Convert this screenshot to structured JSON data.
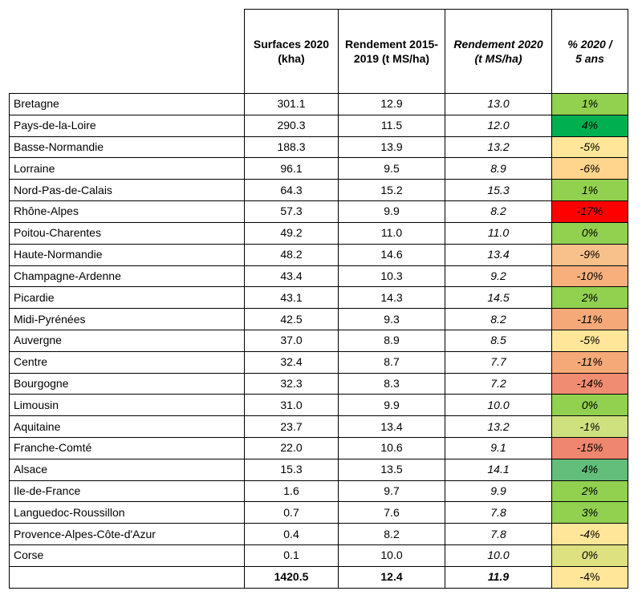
{
  "chart_data": {
    "type": "table",
    "columns": [
      "",
      "Surfaces 2020 (kha)",
      "Rendement 2015-2019 (t MS/ha)",
      "Rendement 2020 (t MS/ha)",
      "% 2020 / 5 ans"
    ],
    "rows": [
      {
        "region": "Bretagne",
        "surface": "301.1",
        "rend_5ans": "12.9",
        "rend_2020": "13.0",
        "pct": "1%",
        "color": "#92d050"
      },
      {
        "region": "Pays-de-la-Loire",
        "surface": "290.3",
        "rend_5ans": "11.5",
        "rend_2020": "12.0",
        "pct": "4%",
        "color": "#00b050"
      },
      {
        "region": "Basse-Normandie",
        "surface": "188.3",
        "rend_5ans": "13.9",
        "rend_2020": "13.2",
        "pct": "-5%",
        "color": "#ffe699"
      },
      {
        "region": "Lorraine",
        "surface": "96.1",
        "rend_5ans": "9.5",
        "rend_2020": "8.9",
        "pct": "-6%",
        "color": "#ffd48c"
      },
      {
        "region": "Nord-Pas-de-Calais",
        "surface": "64.3",
        "rend_5ans": "15.2",
        "rend_2020": "15.3",
        "pct": "1%",
        "color": "#92d050"
      },
      {
        "region": "Rhône-Alpes",
        "surface": "57.3",
        "rend_5ans": "9.9",
        "rend_2020": "8.2",
        "pct": "-17%",
        "color": "#ff0000"
      },
      {
        "region": "Poitou-Charentes",
        "surface": "49.2",
        "rend_5ans": "11.0",
        "rend_2020": "11.0",
        "pct": "0%",
        "color": "#92d050"
      },
      {
        "region": "Haute-Normandie",
        "surface": "48.2",
        "rend_5ans": "14.6",
        "rend_2020": "13.4",
        "pct": "-9%",
        "color": "#f8c08a"
      },
      {
        "region": "Champagne-Ardenne",
        "surface": "43.4",
        "rend_5ans": "10.3",
        "rend_2020": "9.2",
        "pct": "-10%",
        "color": "#f7b07b"
      },
      {
        "region": "Picardie",
        "surface": "43.1",
        "rend_5ans": "14.3",
        "rend_2020": "14.5",
        "pct": "2%",
        "color": "#92d050"
      },
      {
        "region": "Midi-Pyrénées",
        "surface": "42.5",
        "rend_5ans": "9.3",
        "rend_2020": "8.2",
        "pct": "-11%",
        "color": "#f6a978"
      },
      {
        "region": "Auvergne",
        "surface": "37.0",
        "rend_5ans": "8.9",
        "rend_2020": "8.5",
        "pct": "-5%",
        "color": "#ffe699"
      },
      {
        "region": "Centre",
        "surface": "32.4",
        "rend_5ans": "8.7",
        "rend_2020": "7.7",
        "pct": "-11%",
        "color": "#f6a978"
      },
      {
        "region": "Bourgogne",
        "surface": "32.3",
        "rend_5ans": "8.3",
        "rend_2020": "7.2",
        "pct": "-14%",
        "color": "#f08c72"
      },
      {
        "region": "Limousin",
        "surface": "31.0",
        "rend_5ans": "9.9",
        "rend_2020": "10.0",
        "pct": "0%",
        "color": "#92d050"
      },
      {
        "region": "Aquitaine",
        "surface": "23.7",
        "rend_5ans": "13.4",
        "rend_2020": "13.2",
        "pct": "-1%",
        "color": "#cfe07e"
      },
      {
        "region": "Franche-Comté",
        "surface": "22.0",
        "rend_5ans": "10.6",
        "rend_2020": "9.1",
        "pct": "-15%",
        "color": "#ee8670"
      },
      {
        "region": "Alsace",
        "surface": "15.3",
        "rend_5ans": "13.5",
        "rend_2020": "14.1",
        "pct": "4%",
        "color": "#63be7b"
      },
      {
        "region": "Ile-de-France",
        "surface": "1.6",
        "rend_5ans": "9.7",
        "rend_2020": "9.9",
        "pct": "2%",
        "color": "#92d050"
      },
      {
        "region": "Languedoc-Roussillon",
        "surface": "0.7",
        "rend_5ans": "7.6",
        "rend_2020": "7.8",
        "pct": "3%",
        "color": "#92d050"
      },
      {
        "region": "Provence-Alpes-Côte-d'Azur",
        "surface": "0.4",
        "rend_5ans": "8.2",
        "rend_2020": "7.8",
        "pct": "-4%",
        "color": "#ffe699"
      },
      {
        "region": "Corse",
        "surface": "0.1",
        "rend_5ans": "10.0",
        "rend_2020": "10.0",
        "pct": "0%",
        "color": "#dde180"
      }
    ],
    "total": {
      "region": "",
      "surface": "1420.5",
      "rend_5ans": "12.4",
      "rend_2020": "11.9",
      "pct": "-4%",
      "color": "#ffe699"
    }
  },
  "header": {
    "surface_line1": "Surfaces 2020",
    "surface_line2": "(kha)",
    "rend_5ans_line1": "Rendement 2015-",
    "rend_5ans_line2": "2019 (t MS/ha)",
    "rend_2020_line1": "Rendement 2020",
    "rend_2020_line2": "(t MS/ha)",
    "pct_line1": "% 2020 /",
    "pct_line2": "5 ans"
  }
}
